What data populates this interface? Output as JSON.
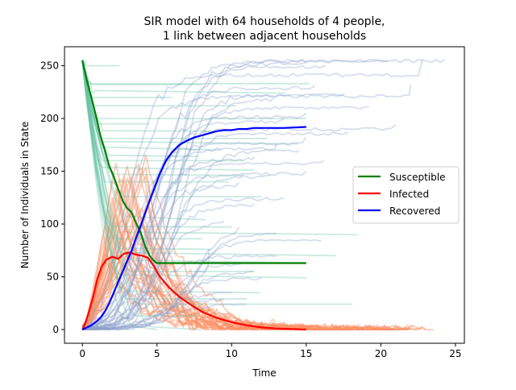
{
  "chart_data": {
    "type": "line",
    "title": "SIR model with 64 households of 4 people,\n1 link between adjacent households",
    "xlabel": "Time",
    "ylabel": "Number of Individuals in State",
    "xlim": [
      -1.2,
      25.6
    ],
    "ylim": [
      -13,
      268
    ],
    "xticks": [
      0,
      5,
      10,
      15,
      20,
      25
    ],
    "yticks": [
      0,
      50,
      100,
      150,
      200,
      250
    ],
    "grid": false,
    "legend": {
      "placement": "center-right",
      "entries": [
        {
          "label": "Susceptible",
          "color": "#008000"
        },
        {
          "label": "Infected",
          "color": "#ff0000"
        },
        {
          "label": "Recovered",
          "color": "#0000ff"
        }
      ]
    },
    "background_runs": {
      "description_of_colors": {
        "susceptible": "#66c2a5",
        "infected": "#fc8d62",
        "recovered": "#8da0cb"
      },
      "susceptible_final_levels": [
        250,
        233,
        232,
        224,
        220,
        212,
        200,
        195,
        188,
        181,
        176,
        170,
        164,
        160,
        151,
        146,
        140,
        126,
        104,
        97,
        90,
        86,
        76,
        70,
        63,
        55,
        49,
        35,
        29,
        24,
        13,
        0,
        0,
        0
      ],
      "susceptible_end_times": [
        2.5,
        15.2,
        8.0,
        13.6,
        6.0,
        10.3,
        15.0,
        4.5,
        9.0,
        12.4,
        14.5,
        9.3,
        7.8,
        10.8,
        11.5,
        10.8,
        9.8,
        12.0,
        8.3,
        10.0,
        18.4,
        8.0,
        8.6,
        17.0,
        15.0,
        11.5,
        15.0,
        11.9,
        11.0,
        18.1,
        7.8,
        3.0,
        5.0,
        8.0
      ],
      "recovered_final_levels": [
        256,
        256,
        255,
        253,
        250,
        232,
        231,
        223,
        219,
        211,
        205,
        200,
        194,
        187,
        182,
        176,
        170,
        164,
        160,
        150,
        146,
        139,
        125,
        119,
        103,
        97,
        91,
        85,
        76,
        70,
        63,
        55,
        49,
        35,
        29,
        24
      ],
      "recovered_end_times": [
        24.3,
        22.8,
        20.5,
        15.0,
        16.3,
        22.0,
        15.6,
        17.5,
        12.8,
        19.2,
        15.0,
        13.5,
        21.0,
        17.8,
        15.0,
        13.0,
        14.5,
        11.5,
        16.2,
        15.0,
        12.6,
        10.5,
        13.5,
        11.5,
        9.5,
        10.5,
        13.0,
        16.0,
        8.5,
        13.0,
        11.0,
        11.5,
        12.0,
        10.0,
        9.5,
        11.0
      ]
    },
    "series": [
      {
        "name": "Susceptible",
        "color": "#008000",
        "x": [
          0,
          0.3,
          0.6,
          0.9,
          1.2,
          1.5,
          1.8,
          2.1,
          2.4,
          2.7,
          3.0,
          3.3,
          3.6,
          3.9,
          4.2,
          4.5,
          4.8,
          5.0,
          6.0,
          8.0,
          10.0,
          12.0,
          15.0
        ],
        "y": [
          255,
          236,
          220,
          203,
          184,
          170,
          155,
          145,
          133,
          122,
          115,
          111,
          101,
          92,
          79,
          70,
          65,
          63,
          63,
          63,
          63,
          63,
          63
        ]
      },
      {
        "name": "Infected",
        "color": "#ff0000",
        "x": [
          0,
          0.2,
          0.4,
          0.7,
          1.0,
          1.3,
          1.6,
          2.0,
          2.4,
          2.8,
          3.2,
          3.6,
          4.0,
          4.4,
          4.8,
          5.2,
          5.8,
          6.5,
          7.2,
          8.0,
          9.0,
          10.0,
          11.0,
          12.0,
          13.0,
          14.0,
          15.0
        ],
        "y": [
          0,
          6,
          15,
          30,
          48,
          60,
          66,
          69,
          67,
          72,
          73,
          71,
          70,
          68,
          60,
          50,
          40,
          31,
          24,
          17,
          11,
          7,
          4,
          2,
          1,
          0.5,
          0
        ]
      },
      {
        "name": "Recovered",
        "color": "#0000ff",
        "x": [
          0,
          0.3,
          0.6,
          0.9,
          1.2,
          1.5,
          1.8,
          2.1,
          2.4,
          2.7,
          3.0,
          3.3,
          3.6,
          3.9,
          4.2,
          4.5,
          4.8,
          5.2,
          5.6,
          6.0,
          6.5,
          7.0,
          7.5,
          8.0,
          8.5,
          9.0,
          9.5,
          10.0,
          10.5,
          11.0,
          11.5,
          12.5,
          13.5,
          15.0
        ],
        "y": [
          0,
          2,
          4,
          7,
          11,
          17,
          25,
          35,
          45,
          55,
          65,
          75,
          87,
          98,
          110,
          122,
          133,
          148,
          160,
          168,
          175,
          179,
          182,
          184,
          186,
          188,
          189,
          189,
          190,
          190,
          191,
          191,
          191,
          192
        ]
      }
    ]
  }
}
